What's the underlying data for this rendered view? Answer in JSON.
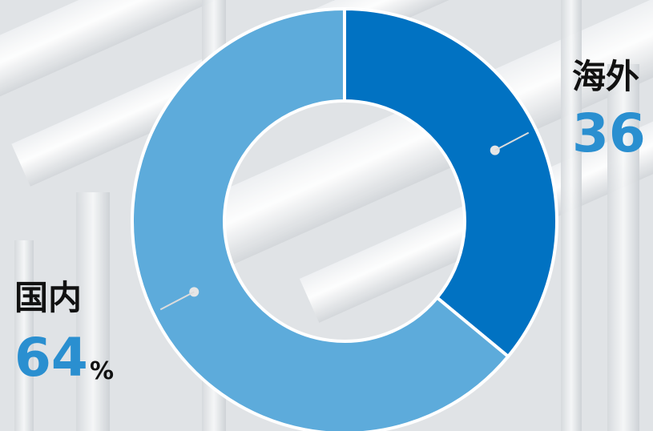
{
  "chart_data": {
    "type": "pie",
    "categories": [
      "海外",
      "国内"
    ],
    "values": [
      36,
      64
    ],
    "unit": "%",
    "colors": [
      "#0172c2",
      "#5dabdb"
    ],
    "title": "",
    "xlabel": "",
    "ylabel": "",
    "legend": "none",
    "grid": false
  },
  "labels": {
    "overseas": {
      "name": "海外",
      "value": "36"
    },
    "domestic": {
      "name": "国内",
      "value": "64",
      "unit": "%"
    }
  },
  "colors": {
    "value_text": "#2a8fd0",
    "leader_line": "#dcdcdc"
  },
  "background": "industrial-pipes-photo-faded"
}
